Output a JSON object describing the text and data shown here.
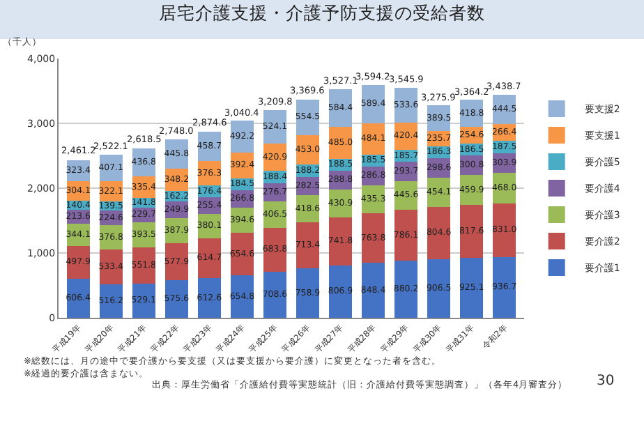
{
  "chart_data": {
    "type": "bar",
    "stacked": true,
    "title": "居宅介護支援・介護予防支援の受給者数",
    "ylabel": "（千人）",
    "categories": [
      "平成19年",
      "平成20年",
      "平成21年",
      "平成22年",
      "平成23年",
      "平成24年",
      "平成25年",
      "平成26年",
      "平成27年",
      "平成28年",
      "平成29年",
      "平成30年",
      "平成31年",
      "令和2年"
    ],
    "series": [
      {
        "name": "要介護1",
        "color": "#4472c4",
        "values": [
          606.4,
          516.2,
          529.1,
          575.6,
          612.6,
          654.8,
          708.6,
          758.9,
          806.9,
          848.4,
          880.2,
          906.5,
          925.1,
          936.7
        ],
        "value_labels": [
          "606.4",
          "516.2",
          "529.1",
          "575.6",
          "612.6",
          "654.8",
          "708.6",
          "758.9",
          "806.9",
          "848.4",
          "880.2",
          "906.5",
          "925.1",
          "936.7"
        ]
      },
      {
        "name": "要介護2",
        "color": "#c0504d",
        "values": [
          497.9,
          533.4,
          551.8,
          577.9,
          614.7,
          654.6,
          683.8,
          713.4,
          741.8,
          763.8,
          786.1,
          804.6,
          817.6,
          831
        ],
        "value_labels": [
          "497.9",
          "533.4",
          "551.8",
          "577.9",
          "614.7",
          "654.6",
          "683.8",
          "713.4",
          "741.8",
          "763.8",
          "786.1",
          "804.6",
          "817.6",
          "831.0"
        ]
      },
      {
        "name": "要介護3",
        "color": "#9bbb59",
        "values": [
          344.1,
          376.8,
          393.5,
          387.9,
          380.1,
          394.6,
          406.5,
          418.6,
          430.9,
          435.3,
          445.6,
          454.1,
          459.9,
          468
        ],
        "value_labels": [
          "344.1",
          "376.8",
          "393.5",
          "387.9",
          "380.1",
          "394.6",
          "406.5",
          "418.6",
          "430.9",
          "435.3",
          "445.6",
          "454.1",
          "459.9",
          "468.0"
        ]
      },
      {
        "name": "要介護4",
        "color": "#8064a2",
        "values": [
          213.6,
          224.6,
          229.7,
          249.9,
          255.4,
          266.8,
          276.7,
          282.5,
          288.8,
          286.8,
          293.7,
          298.6,
          300.8,
          303.9
        ],
        "value_labels": [
          "213.6",
          "224.6",
          "229.7",
          "249.9",
          "255.4",
          "266.8",
          "276.7",
          "282.5",
          "288.8",
          "286.8",
          "293.7",
          "298.6",
          "300.8",
          "303.9"
        ]
      },
      {
        "name": "要介護5",
        "color": "#4bacc6",
        "values": [
          140.4,
          139.5,
          141.8,
          162.2,
          176.4,
          184.5,
          188.4,
          188.2,
          188.5,
          185.5,
          185.7,
          186.3,
          186.5,
          187.5
        ],
        "value_labels": [
          "140.4",
          "139.5",
          "141.8",
          "162.2",
          "176.4",
          "184.5",
          "188.4",
          "188.2",
          "188.5",
          "185.5",
          "185.7",
          "186.3",
          "186.5",
          "187.5"
        ]
      },
      {
        "name": "要支援1",
        "color": "#f79646",
        "values": [
          304.1,
          322.1,
          335.4,
          348.2,
          376.3,
          392.4,
          420.9,
          453,
          485,
          484.1,
          420.4,
          235.7,
          254.6,
          266.4
        ],
        "value_labels": [
          "304.1",
          "322.1",
          "335.4",
          "348.2",
          "376.3",
          "392.4",
          "420.9",
          "453.0",
          "485.0",
          "484.1",
          "420.4",
          "235.7",
          "254.6",
          "266.4"
        ]
      },
      {
        "name": "要支援2",
        "color": "#95b3d7",
        "values": [
          323.4,
          407.1,
          436.8,
          445.8,
          458.7,
          492.2,
          524.1,
          554.5,
          584.4,
          589.4,
          533.6,
          389.5,
          418.8,
          444.5
        ],
        "value_labels": [
          "323.4",
          "407.1",
          "436.8",
          "445.8",
          "458.7",
          "492.2",
          "524.1",
          "554.5",
          "584.4",
          "589.4",
          "533.6",
          "389.5",
          "418.8",
          "444.5"
        ]
      }
    ],
    "data_labels": true,
    "ylim": [
      0,
      4000
    ],
    "yticks": [
      {
        "value": 0,
        "label": "0"
      },
      {
        "value": 1000,
        "label": "1,000"
      },
      {
        "value": 2000,
        "label": "2,000"
      },
      {
        "value": 3000,
        "label": "3,000"
      },
      {
        "value": 4000,
        "label": "4,000"
      }
    ],
    "grid": "y",
    "legend": "right",
    "annotations": [
      {
        "text": "2,461.2",
        "x": "平成19年",
        "y": 2461.2
      },
      {
        "text": "2,522.1",
        "x": "平成20年",
        "y": 2522.1
      },
      {
        "text": "2,618.5",
        "x": "平成21年",
        "y": 2618.5
      },
      {
        "text": "2,748.0",
        "x": "平成22年",
        "y": 2748
      },
      {
        "text": "2,874.6",
        "x": "平成23年",
        "y": 2874.6
      },
      {
        "text": "3,040.4",
        "x": "平成24年",
        "y": 3040.4
      },
      {
        "text": "3,209.8",
        "x": "平成25年",
        "y": 3209.8
      },
      {
        "text": "3,369.6",
        "x": "平成26年",
        "y": 3369.6
      },
      {
        "text": "3,527.1",
        "x": "平成27年",
        "y": 3527.1
      },
      {
        "text": "3,594.2",
        "x": "平成28年",
        "y": 3594.2
      },
      {
        "text": "3,545.9",
        "x": "平成29年",
        "y": 3545.9
      },
      {
        "text": "3,275.9",
        "x": "平成30年",
        "y": 3275.9
      },
      {
        "text": "3,364.2",
        "x": "平成31年",
        "y": 3364.2
      },
      {
        "text": "3,438.7",
        "x": "令和2年",
        "y": 3438.7
      },
      "※総数には、月の途中で要介護から要支援（又は要支援から要介護）に変更となった者を含む。",
      "※経過的要介護は含まない。",
      "出典：厚生労働省「介護給付費等実態統計（旧：介護給付費等実態調査）」（各年4月審査分）",
      "30"
    ]
  }
}
